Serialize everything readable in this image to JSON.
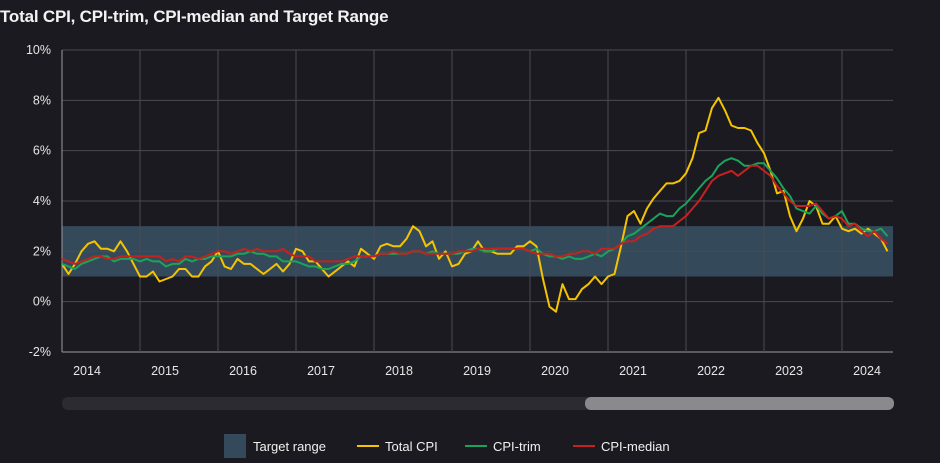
{
  "title": "Total CPI, CPI-trim, CPI-median and Target Range",
  "colors": {
    "background": "#1b1a21",
    "band": "#344a5a",
    "total": "#f5c400",
    "trim": "#1aa35a",
    "median": "#c4221f",
    "grid": "#4a4a52"
  },
  "chart_data": {
    "type": "line",
    "title": "Total CPI, CPI-trim, CPI-median and Target Range",
    "x_start": "2014-01",
    "x_end": "2024-08",
    "frequency": "monthly",
    "ylim": [
      -2,
      10
    ],
    "y_ticks": [
      "-2%",
      "0%",
      "2%",
      "4%",
      "6%",
      "8%",
      "10%"
    ],
    "y_tick_values": [
      -2,
      0,
      2,
      4,
      6,
      8,
      10
    ],
    "x_tick_labels": [
      "2014",
      "2015",
      "2016",
      "2017",
      "2018",
      "2019",
      "2020",
      "2021",
      "2022",
      "2023",
      "2024"
    ],
    "grid": true,
    "target_range": {
      "name": "Target range",
      "low": 1,
      "high": 3
    },
    "series": [
      {
        "name": "Total CPI",
        "values": [
          1.5,
          1.1,
          1.5,
          2.0,
          2.3,
          2.4,
          2.1,
          2.1,
          2.0,
          2.4,
          2.0,
          1.5,
          1.0,
          1.0,
          1.2,
          0.8,
          0.9,
          1.0,
          1.3,
          1.3,
          1.0,
          1.0,
          1.4,
          1.6,
          2.0,
          1.4,
          1.3,
          1.7,
          1.5,
          1.5,
          1.3,
          1.1,
          1.3,
          1.5,
          1.2,
          1.5,
          2.1,
          2.0,
          1.6,
          1.6,
          1.3,
          1.0,
          1.2,
          1.4,
          1.6,
          1.4,
          2.1,
          1.9,
          1.7,
          2.2,
          2.3,
          2.2,
          2.2,
          2.5,
          3.0,
          2.8,
          2.2,
          2.4,
          1.7,
          2.0,
          1.4,
          1.5,
          1.9,
          2.0,
          2.4,
          2.0,
          2.0,
          1.9,
          1.9,
          1.9,
          2.2,
          2.2,
          2.4,
          2.2,
          0.9,
          -0.2,
          -0.4,
          0.7,
          0.1,
          0.1,
          0.5,
          0.7,
          1.0,
          0.7,
          1.0,
          1.1,
          2.2,
          3.4,
          3.6,
          3.1,
          3.7,
          4.1,
          4.4,
          4.7,
          4.7,
          4.8,
          5.1,
          5.7,
          6.7,
          6.8,
          7.7,
          8.1,
          7.6,
          7.0,
          6.9,
          6.9,
          6.8,
          6.3,
          5.9,
          5.2,
          4.3,
          4.4,
          3.4,
          2.8,
          3.3,
          4.0,
          3.8,
          3.1,
          3.1,
          3.4,
          2.9,
          2.8,
          2.9,
          2.7,
          2.9,
          2.7,
          2.5,
          2.0
        ]
      },
      {
        "name": "CPI-trim",
        "values": [
          1.5,
          1.4,
          1.3,
          1.5,
          1.6,
          1.7,
          1.8,
          1.8,
          1.6,
          1.7,
          1.7,
          1.7,
          1.6,
          1.7,
          1.6,
          1.6,
          1.4,
          1.5,
          1.5,
          1.7,
          1.6,
          1.7,
          1.7,
          1.8,
          1.8,
          1.8,
          1.8,
          1.9,
          1.9,
          2.0,
          1.9,
          1.9,
          1.8,
          1.8,
          1.6,
          1.6,
          1.6,
          1.5,
          1.4,
          1.4,
          1.3,
          1.3,
          1.4,
          1.5,
          1.5,
          1.6,
          1.8,
          1.8,
          1.8,
          1.9,
          1.9,
          1.9,
          1.9,
          1.9,
          2.0,
          2.0,
          1.9,
          2.0,
          1.9,
          1.9,
          1.9,
          1.9,
          2.0,
          2.1,
          2.1,
          2.0,
          2.0,
          2.1,
          2.1,
          2.1,
          2.1,
          2.1,
          2.0,
          2.1,
          1.9,
          1.8,
          1.8,
          1.7,
          1.8,
          1.7,
          1.7,
          1.8,
          1.9,
          1.8,
          2.0,
          2.1,
          2.3,
          2.6,
          2.7,
          2.9,
          3.1,
          3.3,
          3.5,
          3.4,
          3.4,
          3.7,
          3.9,
          4.2,
          4.5,
          4.8,
          5.0,
          5.4,
          5.6,
          5.7,
          5.6,
          5.4,
          5.4,
          5.5,
          5.5,
          5.2,
          4.9,
          4.5,
          4.2,
          3.7,
          3.6,
          3.5,
          3.8,
          3.5,
          3.3,
          3.4,
          3.6,
          3.1,
          3.1,
          2.9,
          2.8,
          2.8,
          2.9,
          2.6
        ]
      },
      {
        "name": "CPI-median",
        "values": [
          1.7,
          1.6,
          1.5,
          1.6,
          1.7,
          1.8,
          1.8,
          1.7,
          1.7,
          1.8,
          1.8,
          1.8,
          1.8,
          1.8,
          1.8,
          1.8,
          1.6,
          1.7,
          1.6,
          1.8,
          1.8,
          1.7,
          1.8,
          1.9,
          2.0,
          2.0,
          1.9,
          2.0,
          2.1,
          2.0,
          2.1,
          2.0,
          2.0,
          2.0,
          2.1,
          1.9,
          1.8,
          1.8,
          1.8,
          1.6,
          1.6,
          1.6,
          1.6,
          1.6,
          1.7,
          1.8,
          1.8,
          1.8,
          1.8,
          1.9,
          1.9,
          2.0,
          1.9,
          1.9,
          2.0,
          2.0,
          1.9,
          1.9,
          1.9,
          1.9,
          1.9,
          2.0,
          2.0,
          2.0,
          2.1,
          2.1,
          2.1,
          2.1,
          2.1,
          2.1,
          2.1,
          2.1,
          2.0,
          1.9,
          1.9,
          1.9,
          1.8,
          1.8,
          1.9,
          1.9,
          2.0,
          2.0,
          1.9,
          2.1,
          2.1,
          2.1,
          2.3,
          2.4,
          2.4,
          2.6,
          2.7,
          2.9,
          3.0,
          3.0,
          3.0,
          3.2,
          3.4,
          3.7,
          4.0,
          4.4,
          4.8,
          5.0,
          5.1,
          5.2,
          5.0,
          5.2,
          5.4,
          5.4,
          5.2,
          5.0,
          4.6,
          4.3,
          4.0,
          3.8,
          3.8,
          3.8,
          3.9,
          3.6,
          3.3,
          3.4,
          3.3,
          3.0,
          3.1,
          2.8,
          2.6,
          2.8,
          2.5,
          2.3
        ]
      }
    ],
    "legend": [
      "Target range",
      "Total CPI",
      "CPI-trim",
      "CPI-median"
    ],
    "legend_position": "bottom"
  }
}
